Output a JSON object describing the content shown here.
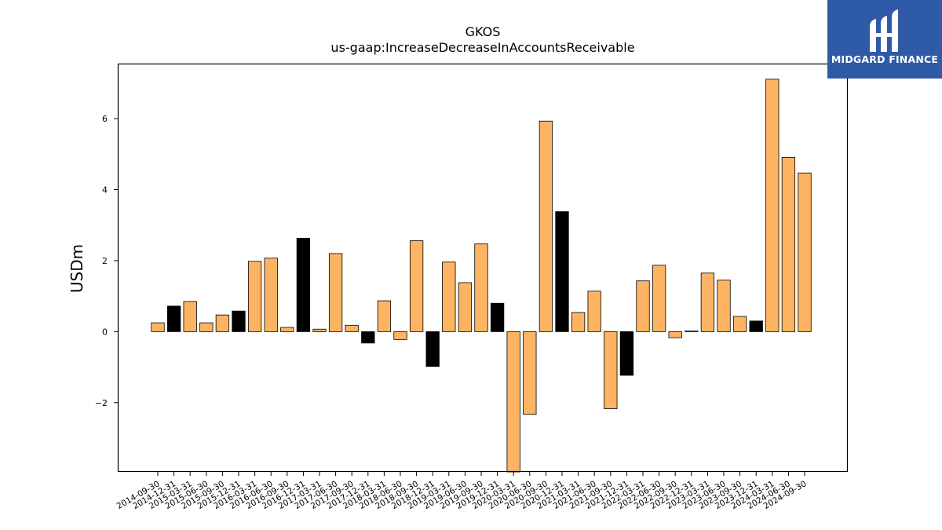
{
  "title": "GKOS",
  "subtitle": "us-gaap:IncreaseDecreaseInAccountsReceivable",
  "logo_text": "MIDGARD FINANCE",
  "colors": {
    "positive_bar": "#fdb462",
    "highlight_bar": "#000000",
    "edge": "#000000"
  },
  "chart_data": {
    "type": "bar",
    "title": "GKOS",
    "subtitle": "us-gaap:IncreaseDecreaseInAccountsReceivable",
    "xlabel": "",
    "ylabel": "USDm",
    "ylim": [
      -3.95,
      7.55
    ],
    "yticks": [
      -2,
      0,
      2,
      4,
      6
    ],
    "ytick_labels": [
      "−2",
      "0",
      "2",
      "4",
      "6"
    ],
    "grid": false,
    "categories": [
      "2014-09-30",
      "2014-12-31",
      "2015-03-31",
      "2015-06-30",
      "2015-09-30",
      "2015-12-31",
      "2016-03-31",
      "2016-06-30",
      "2016-09-30",
      "2016-12-31",
      "2017-03-31",
      "2017-06-30",
      "2017-09-30",
      "2017-12-31",
      "2018-03-31",
      "2018-06-30",
      "2018-09-30",
      "2018-12-31",
      "2019-03-31",
      "2019-06-30",
      "2019-09-30",
      "2019-12-31",
      "2020-03-31",
      "2020-06-30",
      "2020-09-30",
      "2020-12-31",
      "2021-03-31",
      "2021-06-30",
      "2021-09-30",
      "2021-12-31",
      "2022-03-31",
      "2022-06-30",
      "2022-09-30",
      "2022-12-31",
      "2023-03-31",
      "2023-06-30",
      "2023-09-30",
      "2023-12-31",
      "2024-03-31",
      "2024-06-30",
      "2024-09-30"
    ],
    "values": [
      0.25,
      0.72,
      0.85,
      0.25,
      0.47,
      0.58,
      1.98,
      2.07,
      0.12,
      2.63,
      0.07,
      2.2,
      0.18,
      -0.32,
      0.87,
      -0.22,
      2.56,
      -0.98,
      1.96,
      1.38,
      2.47,
      0.8,
      -3.95,
      -2.33,
      5.93,
      3.38,
      0.54,
      1.14,
      -2.17,
      -1.23,
      1.43,
      1.87,
      -0.17,
      0.02,
      1.65,
      1.45,
      0.43,
      0.3,
      7.11,
      4.91,
      4.47
    ],
    "highlight": [
      false,
      true,
      false,
      false,
      false,
      true,
      false,
      false,
      false,
      true,
      false,
      false,
      false,
      true,
      false,
      false,
      false,
      true,
      false,
      false,
      false,
      true,
      false,
      false,
      false,
      true,
      false,
      false,
      false,
      true,
      false,
      false,
      false,
      false,
      false,
      false,
      false,
      true,
      false,
      false,
      false
    ]
  }
}
